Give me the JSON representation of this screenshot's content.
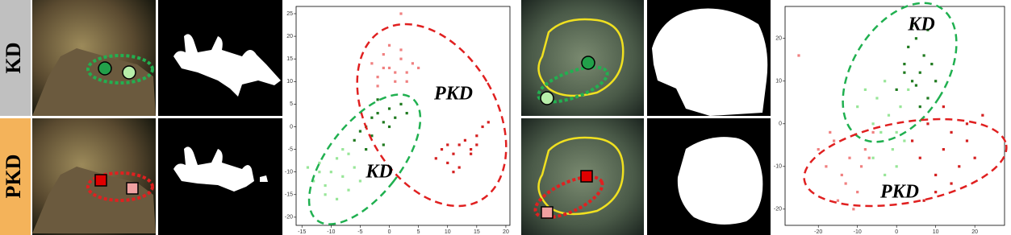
{
  "row_labels": [
    "KD",
    "PKD"
  ],
  "chart_data": [
    {
      "type": "scatter",
      "annotations": [
        "PKD",
        "KD"
      ],
      "xlim": [
        -16,
        20.7
      ],
      "ylim": [
        -21.8,
        26.6
      ],
      "xticks": [
        -15,
        -10,
        -5,
        0,
        5,
        10,
        15,
        20
      ],
      "yticks": [
        -20,
        -15,
        -10,
        -5,
        0,
        5,
        10,
        15,
        20,
        25
      ],
      "series": [
        {
          "color": "#f08080",
          "x": [
            -3,
            -2,
            -1,
            0,
            1,
            2,
            3,
            4,
            -2,
            0,
            2,
            1,
            -1,
            3,
            5,
            2
          ],
          "values": [
            14,
            11,
            16,
            13,
            10,
            15,
            12,
            14,
            9,
            18,
            17,
            12,
            13,
            10,
            13,
            25
          ]
        },
        {
          "color": "#d42020",
          "x": [
            8,
            9,
            10,
            11,
            12,
            13,
            14,
            15,
            16,
            17,
            12,
            14,
            10,
            15,
            11
          ],
          "values": [
            -7,
            -5,
            -8,
            -6,
            -4,
            -3,
            -5,
            -2,
            0,
            1,
            -9,
            -6,
            -4,
            -4,
            -10
          ]
        },
        {
          "color": "#1f7a1f",
          "x": [
            -6,
            -5,
            -4,
            -3,
            -2,
            -1,
            0,
            1,
            2,
            -3,
            -1,
            -4,
            -2,
            0,
            3
          ],
          "values": [
            -3,
            -1,
            0,
            2,
            3,
            1,
            4,
            2,
            5,
            -2,
            -4,
            -5,
            6,
            0,
            3
          ]
        },
        {
          "color": "#98e698",
          "x": [
            -14,
            -13,
            -12,
            -11,
            -10,
            -9,
            -8,
            -7,
            -6,
            -5,
            -11,
            -9,
            -7,
            -12,
            -8
          ],
          "values": [
            -9,
            -12,
            -8,
            -13,
            -10,
            -7,
            -11,
            -14,
            -9,
            -12,
            -15,
            -16,
            -6,
            -10,
            -5
          ]
        }
      ]
    },
    {
      "type": "scatter",
      "annotations": [
        "KD",
        "PKD"
      ],
      "xlim": [
        -28.5,
        27.6
      ],
      "ylim": [
        -23.8,
        27.5
      ],
      "xticks": [
        -20,
        -10,
        0,
        10,
        20
      ],
      "yticks": [
        -20,
        -10,
        0,
        10,
        20
      ],
      "series": [
        {
          "color": "#1f7a1f",
          "x": [
            0,
            2,
            3,
            4,
            5,
            6,
            7,
            8,
            9,
            10,
            4,
            6,
            8,
            2,
            5
          ],
          "values": [
            8,
            14,
            18,
            10,
            20,
            12,
            16,
            6,
            14,
            10,
            23,
            4,
            22,
            12,
            9
          ]
        },
        {
          "color": "#98e698",
          "x": [
            -10,
            -8,
            -6,
            -5,
            -4,
            -3,
            -2,
            -1,
            0,
            1,
            2,
            -6,
            -3,
            0,
            3
          ],
          "values": [
            4,
            8,
            0,
            6,
            -2,
            10,
            2,
            -6,
            -10,
            4,
            -4,
            -8,
            -12,
            -2,
            8
          ]
        },
        {
          "color": "#f08080",
          "x": [
            -20,
            -18,
            -16,
            -14,
            -12,
            -10,
            -8,
            -6,
            -15,
            -11,
            -9,
            -13,
            -17,
            -7,
            -25
          ],
          "values": [
            -6,
            -10,
            -4,
            -12,
            -8,
            -16,
            -6,
            -2,
            -18,
            -20,
            -10,
            -14,
            -2,
            -8,
            16
          ]
        },
        {
          "color": "#d42020",
          "x": [
            4,
            6,
            8,
            10,
            12,
            14,
            16,
            18,
            20,
            22,
            10,
            14,
            18,
            7,
            12
          ],
          "values": [
            -4,
            -8,
            0,
            -12,
            -6,
            -2,
            -10,
            -4,
            -8,
            2,
            -16,
            -14,
            0,
            -18,
            4
          ]
        }
      ]
    }
  ]
}
